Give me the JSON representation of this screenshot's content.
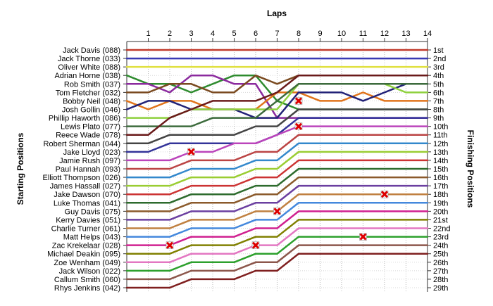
{
  "chart_data": {
    "type": "line",
    "title": "",
    "xlabel": "Laps",
    "ylabel_left": "Starting Positions",
    "ylabel_right": "Finishing Positions",
    "x_ticks": [
      1,
      2,
      3,
      4,
      5,
      6,
      7,
      8,
      9,
      10,
      11,
      12,
      13,
      14
    ],
    "x_range": [
      0,
      14
    ],
    "y_range": [
      1,
      29
    ],
    "grid": true,
    "legend": "none",
    "start_labels": [
      "Jack Davis (088)",
      "Jack Thorne (033)",
      "Oliver White (088)",
      "Adrian Horne (038)",
      "Rob Smith (037)",
      "Tom Fletcher (032)",
      "Bobby Neil (048)",
      "Josh Gollin (046)",
      "Phillip Haworth (086)",
      "Lewis Plato (077)",
      "Reece Wade (078)",
      "Robert Sherman (044)",
      "Jake Lloyd (023)",
      "Jamie Rush (097)",
      "Paul Hannah (093)",
      "Elliott Thompson (026)",
      "James Hassall (027)",
      "Jake Dawson (070)",
      "Luke Thomas (041)",
      "Guy Davis (075)",
      "Kerry Davies (051)",
      "Charlie Turner (061)",
      "Matt Helps (043)",
      "Zac Krekelaar (028)",
      "Michael Deakin (095)",
      "Zoe Wenham (049)",
      "Jack Wilson (022)",
      "Callum Smith (060)",
      "Rhys Jenkins (042)"
    ],
    "finish_labels": [
      "1st",
      "2nd",
      "3rd",
      "4th",
      "5th",
      "6th",
      "7th",
      "8th",
      "9th",
      "10th",
      "11th",
      "12th",
      "13th",
      "14th",
      "15th",
      "16th",
      "17th",
      "18th",
      "19th",
      "20th",
      "21st",
      "22nd",
      "23rd",
      "24th",
      "25th",
      "26th",
      "27th",
      "28th",
      "29th"
    ],
    "series": [
      {
        "color": "#c0392b",
        "positions": [
          1,
          1,
          1,
          1,
          1,
          1,
          1,
          1,
          1,
          1,
          1,
          1,
          1,
          1,
          1
        ]
      },
      {
        "color": "#3a3ab4",
        "positions": [
          2,
          2,
          2,
          2,
          2,
          2,
          2,
          2,
          2,
          2,
          2,
          2,
          2,
          2,
          2
        ]
      },
      {
        "color": "#e0e040",
        "positions": [
          3,
          3,
          3,
          3,
          3,
          3,
          3,
          3,
          3,
          3,
          3,
          3,
          3,
          3,
          3
        ]
      },
      {
        "color": "#2e8b2e",
        "positions": [
          4,
          5,
          5,
          6,
          5,
          4,
          4,
          7,
          8,
          8,
          8,
          8,
          8,
          8,
          8
        ]
      },
      {
        "color": "#8b2a9e",
        "positions": [
          5,
          5,
          6,
          4,
          4,
          5,
          5,
          9,
          9,
          9,
          9,
          9,
          9,
          9,
          9
        ]
      },
      {
        "color": "#7a4a20",
        "positions": [
          6,
          6,
          5,
          5,
          6,
          6,
          4,
          5,
          4,
          4,
          4,
          4,
          4,
          4,
          4
        ]
      },
      {
        "color": "#e0731a",
        "positions": [
          7,
          8,
          7,
          7,
          8,
          8,
          8,
          6,
          6,
          7,
          7,
          6,
          7,
          7,
          7
        ]
      },
      {
        "color": "#222277",
        "positions": [
          8,
          7,
          7,
          8,
          8,
          8,
          9,
          9,
          6,
          6,
          6,
          7,
          6,
          5,
          5
        ]
      },
      {
        "color": "#8fd13f",
        "positions": [
          9,
          9,
          9,
          8,
          8,
          8,
          8,
          8,
          5,
          5,
          5,
          5,
          5,
          6,
          6
        ]
      },
      {
        "color": "#3c6b3c",
        "positions": [
          10,
          10,
          10,
          10,
          9,
          9,
          9,
          7,
          5,
          5,
          5,
          5,
          5,
          5,
          5
        ]
      },
      {
        "color": "#6a1a1a",
        "positions": [
          11,
          11,
          9,
          8,
          7,
          7,
          7,
          6,
          4,
          4,
          4,
          4,
          4,
          4,
          4
        ]
      },
      {
        "color": "#444444",
        "positions": [
          12,
          12,
          11,
          11,
          11,
          11,
          10,
          10,
          8,
          8,
          8,
          8,
          8,
          8,
          8
        ]
      },
      {
        "color": "#333399",
        "positions": [
          13,
          13,
          12,
          12,
          12,
          12,
          12,
          11,
          9,
          9,
          9,
          9,
          9,
          9,
          9
        ]
      },
      {
        "color": "#bb44bb",
        "positions": [
          14,
          14,
          14,
          13,
          13,
          12,
          12,
          11,
          10,
          10,
          10,
          10,
          10,
          10,
          10
        ]
      },
      {
        "color": "#bb4444",
        "positions": [
          15,
          15,
          15,
          14,
          14,
          14,
          13,
          13,
          11,
          11,
          11,
          11,
          11,
          11,
          11
        ]
      },
      {
        "color": "#3388cc",
        "positions": [
          16,
          16,
          16,
          15,
          15,
          15,
          14,
          14,
          12,
          12,
          12,
          12,
          12,
          12,
          12
        ]
      },
      {
        "color": "#9acd32",
        "positions": [
          17,
          17,
          17,
          16,
          16,
          16,
          15,
          15,
          13,
          13,
          13,
          13,
          13,
          13,
          13
        ]
      },
      {
        "color": "#cc3333",
        "positions": [
          18,
          18,
          18,
          17,
          17,
          17,
          16,
          16,
          14,
          14,
          14,
          14,
          14,
          14,
          14
        ]
      },
      {
        "color": "#2d6b2d",
        "positions": [
          19,
          19,
          19,
          18,
          18,
          18,
          17,
          17,
          15,
          15,
          15,
          15,
          15,
          15,
          15
        ]
      },
      {
        "color": "#8b5a2b",
        "positions": [
          20,
          20,
          20,
          19,
          19,
          19,
          18,
          18,
          16,
          16,
          16,
          16,
          16,
          16,
          16
        ]
      },
      {
        "color": "#6b3fa0",
        "positions": [
          21,
          21,
          21,
          20,
          20,
          20,
          19,
          19,
          17,
          17,
          17,
          17,
          17,
          17,
          17
        ]
      },
      {
        "color": "#c08040",
        "positions": [
          22,
          22,
          22,
          21,
          21,
          21,
          20,
          20,
          18,
          18,
          18,
          18,
          18,
          18,
          18
        ]
      },
      {
        "color": "#4488dd",
        "positions": [
          23,
          23,
          23,
          22,
          22,
          22,
          21,
          21,
          19,
          19,
          19,
          19,
          19,
          19,
          19
        ]
      },
      {
        "color": "#d02090",
        "positions": [
          24,
          24,
          24,
          23,
          23,
          23,
          22,
          22,
          20,
          20,
          20,
          20,
          20,
          20,
          20
        ]
      },
      {
        "color": "#808000",
        "positions": [
          25,
          25,
          25,
          24,
          24,
          24,
          23,
          23,
          21,
          21,
          21,
          21,
          21,
          21,
          21
        ]
      },
      {
        "color": "#e377c2",
        "positions": [
          26,
          26,
          26,
          25,
          25,
          25,
          24,
          24,
          22,
          22,
          22,
          22,
          22,
          22,
          22
        ]
      },
      {
        "color": "#2ca02c",
        "positions": [
          27,
          27,
          27,
          26,
          26,
          26,
          25,
          25,
          23,
          23,
          23,
          23,
          23,
          23,
          23
        ]
      },
      {
        "color": "#8c564b",
        "positions": [
          28,
          28,
          28,
          27,
          27,
          27,
          26,
          26,
          24,
          24,
          24,
          24,
          24,
          24,
          24
        ]
      },
      {
        "color": "#7f1f1f",
        "positions": [
          29,
          29,
          29,
          28,
          28,
          28,
          27,
          27,
          25,
          25,
          25,
          25,
          25,
          25,
          25
        ]
      }
    ],
    "retirements": [
      {
        "lap": 3,
        "position": 13
      },
      {
        "lap": 2,
        "position": 24
      },
      {
        "lap": 6,
        "position": 24
      },
      {
        "lap": 7,
        "position": 20
      },
      {
        "lap": 8,
        "position": 7
      },
      {
        "lap": 8,
        "position": 10
      },
      {
        "lap": 11,
        "position": 23
      },
      {
        "lap": 12,
        "position": 18
      }
    ]
  }
}
